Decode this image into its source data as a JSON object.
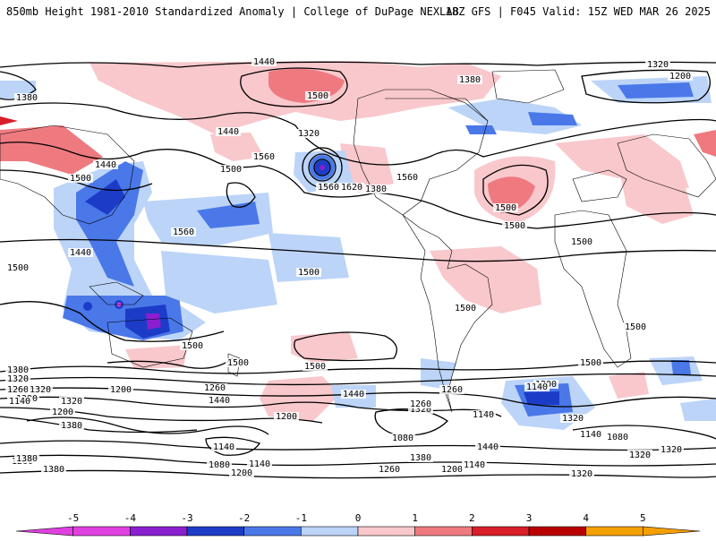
{
  "header": {
    "title": "850mb Height 1981-2010 Standardized Anomaly | College of DuPage NEXLAB",
    "run_info": "18Z GFS | F045 Valid: 15Z WED MAR 26 2025"
  },
  "colorbar": {
    "ticks": [
      "-5",
      "-4",
      "-3",
      "-2",
      "-1",
      "0",
      "1",
      "2",
      "3",
      "4",
      "5"
    ],
    "colors": {
      "n5": "#e040e0",
      "n4": "#8a1fd0",
      "n3": "#1c3cc8",
      "n2": "#4a78e8",
      "n1": "#bcd4f8",
      "zero": "#ffffff",
      "p1": "#f8c8cc",
      "p2": "#ee7a80",
      "p3": "#d81e28",
      "p4": "#b80000",
      "p5": "#f4a000"
    }
  },
  "contours": [
    "1440",
    "1500",
    "1380",
    "1320",
    "1200",
    "1380",
    "1320",
    "1560",
    "1440",
    "1500",
    "1380",
    "1440",
    "1500",
    "1440",
    "1500",
    "1560",
    "1620",
    "1560",
    "1500",
    "1500",
    "1500",
    "1500",
    "1500",
    "1560",
    "1500",
    "1500",
    "1500",
    "1440",
    "1380",
    "1320",
    "1260",
    "1380",
    "1320",
    "1200",
    "1380",
    "1260",
    "1440",
    "1320",
    "1200",
    "1500",
    "1260",
    "1140",
    "1200",
    "1140",
    "1080",
    "1440",
    "1380",
    "1320",
    "1140",
    "1080",
    "1260",
    "1320",
    "1140",
    "1260",
    "1080",
    "1200",
    "1140",
    "1200",
    "1140",
    "1260",
    "1320",
    "1380",
    "1380",
    "1320",
    "1140",
    "1200",
    "1260",
    "1500",
    "1320"
  ]
}
